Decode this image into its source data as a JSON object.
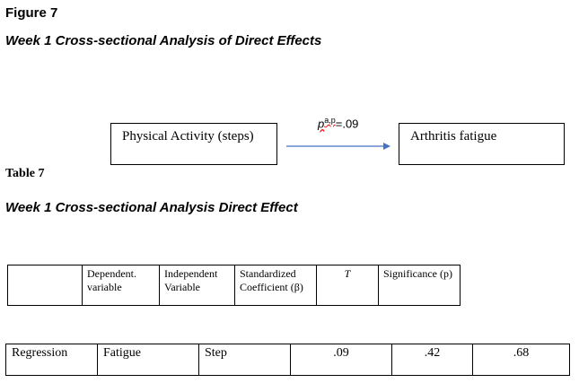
{
  "header": {
    "figure_label": "Figure  7",
    "figure_title": "Week 1 Cross-sectional Analysis of Direct Effects"
  },
  "diagram": {
    "nodes": [
      {
        "label": "Physical Activity (steps)"
      },
      {
        "label": "Arthritis fatigue"
      }
    ],
    "edge": {
      "symbol": "p",
      "superscript": "a,p",
      "value": "=.09"
    }
  },
  "table_header": {
    "label": "Table 7",
    "title": "Week 1 Cross-sectional Analysis Direct Effect"
  },
  "table": {
    "header": [
      "Dependent. variable",
      "Independent Variable",
      "Standardized Coefficient (β)",
      "T",
      "Significance (p)"
    ],
    "rows": [
      [
        "Regression",
        "Fatigue",
        "Step",
        ".09",
        ".42",
        ".68"
      ]
    ]
  }
}
